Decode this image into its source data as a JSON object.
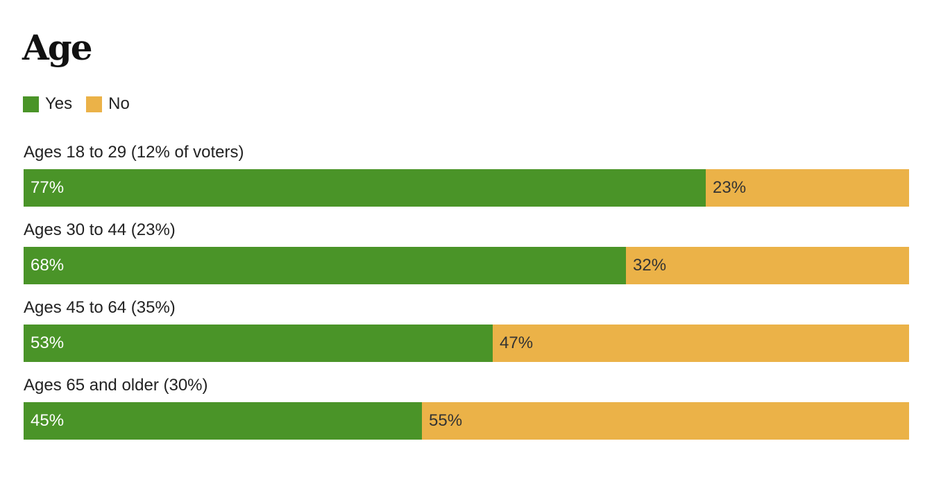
{
  "chart_data": {
    "type": "bar",
    "orientation": "horizontal",
    "stacked": true,
    "title": "Age",
    "legend": [
      {
        "name": "Yes",
        "color": "#4a9428"
      },
      {
        "name": "No",
        "color": "#ebb248"
      }
    ],
    "legend_placement": "top-left",
    "categories": [
      "Ages 18 to 29 (12% of voters)",
      "Ages 30 to 44 (23%)",
      "Ages 45 to 64 (35%)",
      "Ages 65 and older (30%)"
    ],
    "series": [
      {
        "name": "Yes",
        "values": [
          77,
          68,
          53,
          45
        ],
        "labels": [
          "77%",
          "68%",
          "53%",
          "45%"
        ]
      },
      {
        "name": "No",
        "values": [
          23,
          32,
          47,
          55
        ],
        "labels": [
          "23%",
          "32%",
          "47%",
          "55%"
        ]
      }
    ],
    "xlim": [
      0,
      100
    ],
    "grid": false
  }
}
